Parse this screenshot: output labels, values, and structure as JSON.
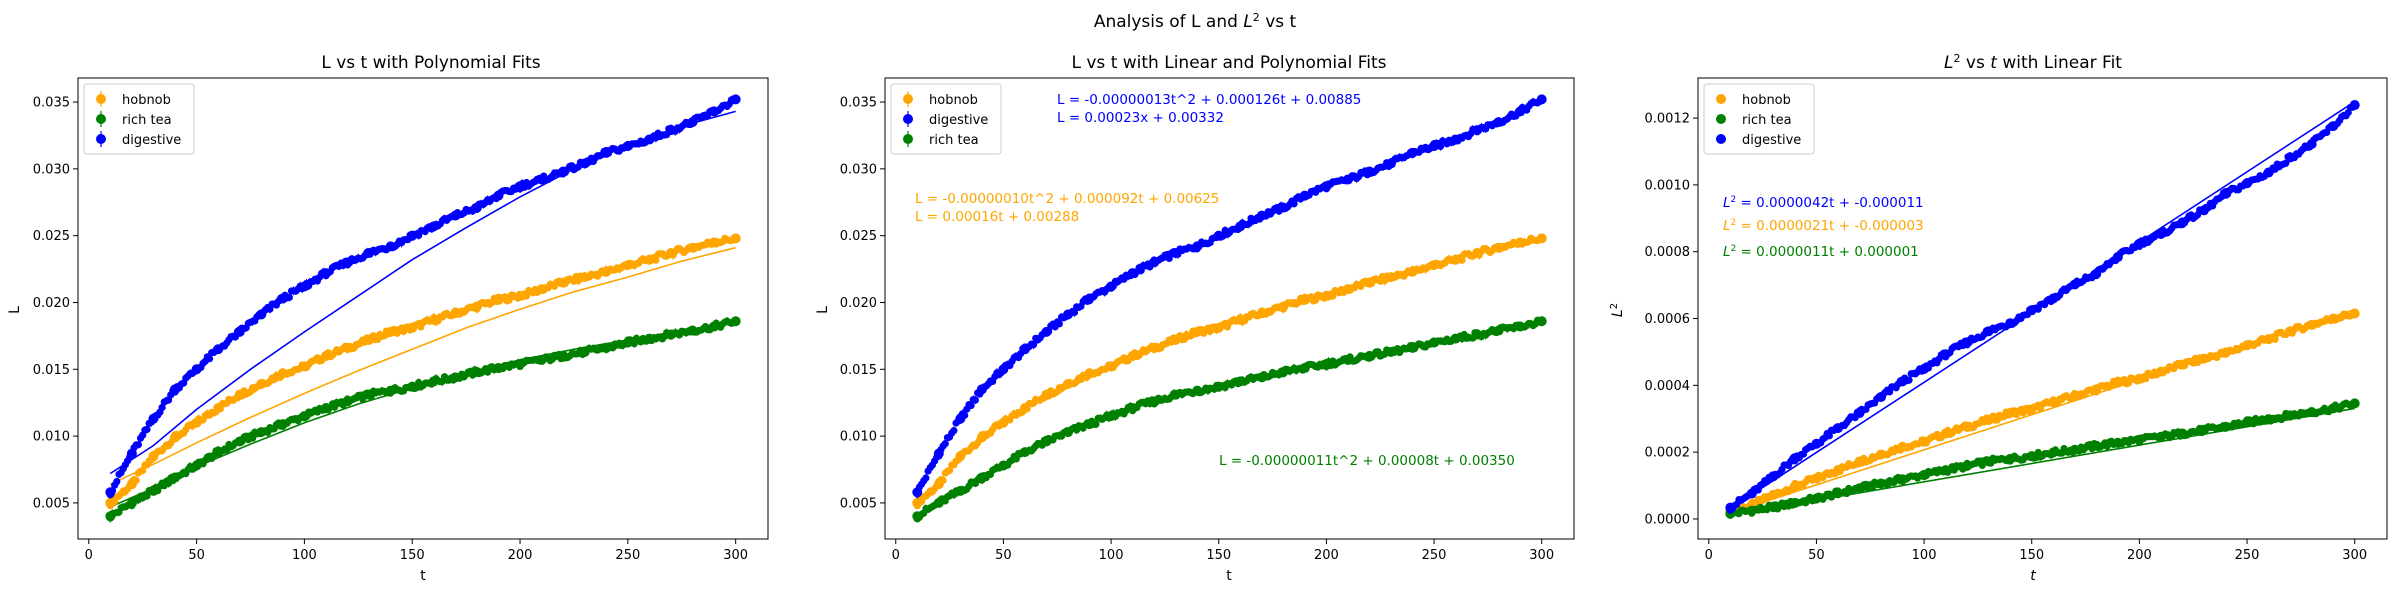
{
  "figure": {
    "title_prefix": "Analysis of L and ",
    "title_suffix": " vs t"
  },
  "colors": {
    "hobnob": "#ffa500",
    "rich_tea": "#008000",
    "digestive": "#0000ff",
    "axis": "#000000"
  },
  "chart_data": [
    {
      "type": "scatter",
      "title": "L vs t with Polynomial Fits",
      "xlabel": "t",
      "ylabel": "L",
      "xlim": [
        -5,
        315
      ],
      "ylim": [
        0.0023,
        0.0368
      ],
      "xticks": [
        0,
        50,
        100,
        150,
        200,
        250,
        300
      ],
      "xtick_labels": [
        "0",
        "50",
        "100",
        "150",
        "200",
        "250",
        "300"
      ],
      "yticks": [
        0.005,
        0.01,
        0.015,
        0.02,
        0.025,
        0.03,
        0.035
      ],
      "ytick_labels": [
        "0.005",
        "0.010",
        "0.015",
        "0.020",
        "0.025",
        "0.030",
        "0.035"
      ],
      "legend": [
        "hobnob",
        "rich tea",
        "digestive"
      ],
      "legend_position": "upper-left",
      "error_bars": true,
      "series": [
        {
          "name": "hobnob",
          "x": [
            10,
            20,
            30,
            40,
            50,
            60,
            70,
            80,
            90,
            100,
            110,
            120,
            130,
            140,
            150,
            160,
            170,
            180,
            190,
            200,
            210,
            220,
            230,
            240,
            250,
            260,
            270,
            280,
            290,
            300
          ],
          "y": [
            0.005,
            0.0064,
            0.0085,
            0.0099,
            0.011,
            0.0121,
            0.0131,
            0.0139,
            0.0147,
            0.0152,
            0.016,
            0.0166,
            0.0172,
            0.0178,
            0.0181,
            0.0187,
            0.0192,
            0.0197,
            0.0202,
            0.0205,
            0.021,
            0.0215,
            0.0219,
            0.0223,
            0.0228,
            0.0232,
            0.0237,
            0.0241,
            0.0245,
            0.0248
          ]
        },
        {
          "name": "rich tea",
          "x": [
            10,
            20,
            30,
            40,
            50,
            60,
            70,
            80,
            90,
            100,
            110,
            120,
            130,
            140,
            150,
            160,
            170,
            180,
            190,
            200,
            210,
            220,
            230,
            240,
            250,
            260,
            270,
            280,
            290,
            300
          ],
          "y": [
            0.004,
            0.005,
            0.0059,
            0.0069,
            0.0078,
            0.0088,
            0.0096,
            0.0103,
            0.0109,
            0.0115,
            0.0121,
            0.0126,
            0.0131,
            0.0134,
            0.0137,
            0.0141,
            0.0144,
            0.0148,
            0.0151,
            0.0154,
            0.0157,
            0.016,
            0.0163,
            0.0166,
            0.017,
            0.0173,
            0.0176,
            0.0179,
            0.0182,
            0.0186
          ]
        },
        {
          "name": "digestive",
          "x": [
            10,
            20,
            30,
            40,
            50,
            60,
            70,
            80,
            90,
            100,
            110,
            120,
            130,
            140,
            150,
            160,
            170,
            180,
            190,
            200,
            210,
            220,
            230,
            240,
            250,
            260,
            270,
            280,
            290,
            300
          ],
          "y": [
            0.0058,
            0.0087,
            0.0113,
            0.0135,
            0.015,
            0.0165,
            0.0178,
            0.0191,
            0.0203,
            0.0212,
            0.0222,
            0.023,
            0.0237,
            0.0242,
            0.025,
            0.0257,
            0.0265,
            0.0271,
            0.028,
            0.0287,
            0.0292,
            0.0298,
            0.0304,
            0.0312,
            0.0317,
            0.0322,
            0.0329,
            0.0335,
            0.0343,
            0.0352
          ]
        }
      ],
      "fits": [
        {
          "name": "hobnob",
          "x": [
            10,
            30,
            50,
            75,
            100,
            125,
            150,
            175,
            200,
            225,
            250,
            275,
            300
          ],
          "y": [
            0.0064,
            0.0079,
            0.0095,
            0.0114,
            0.0132,
            0.0149,
            0.0165,
            0.0181,
            0.0195,
            0.0208,
            0.0219,
            0.0231,
            0.0241
          ]
        },
        {
          "name": "rich tea",
          "x": [
            10,
            30,
            50,
            75,
            100,
            125,
            150,
            175,
            200,
            225,
            250,
            275,
            300
          ],
          "y": [
            0.0047,
            0.0061,
            0.0077,
            0.0094,
            0.011,
            0.0124,
            0.0136,
            0.0147,
            0.0157,
            0.0165,
            0.0172,
            0.0179,
            0.0185
          ]
        },
        {
          "name": "digestive",
          "x": [
            10,
            30,
            50,
            75,
            100,
            125,
            150,
            175,
            200,
            225,
            250,
            275,
            300
          ],
          "y": [
            0.0072,
            0.0093,
            0.012,
            0.015,
            0.0178,
            0.0205,
            0.0232,
            0.0256,
            0.0279,
            0.03,
            0.0318,
            0.0332,
            0.0343
          ]
        }
      ]
    },
    {
      "type": "scatter",
      "title": "L vs t with Linear and Polynomial Fits",
      "xlabel": "t",
      "ylabel": "L",
      "xlim": [
        -5,
        315
      ],
      "ylim": [
        0.0023,
        0.0368
      ],
      "xticks": [
        0,
        50,
        100,
        150,
        200,
        250,
        300
      ],
      "xtick_labels": [
        "0",
        "50",
        "100",
        "150",
        "200",
        "250",
        "300"
      ],
      "yticks": [
        0.005,
        0.01,
        0.015,
        0.02,
        0.025,
        0.03,
        0.035
      ],
      "ytick_labels": [
        "0.005",
        "0.010",
        "0.015",
        "0.020",
        "0.025",
        "0.030",
        "0.035"
      ],
      "legend": [
        "hobnob",
        "digestive",
        "rich tea"
      ],
      "legend_position": "upper-left",
      "error_bars": true,
      "annotations": [
        {
          "series": "digestive",
          "lines": [
            "L = -0.00000013t^2 + 0.000126t + 0.00885",
            "L = 0.00023x + 0.00332"
          ]
        },
        {
          "series": "hobnob",
          "lines": [
            "L = -0.00000010t^2 + 0.000092t + 0.00625",
            "L = 0.00016t + 0.00288"
          ]
        },
        {
          "series": "rich tea",
          "lines": [
            "L = -0.00000011t^2 + 0.00008t + 0.00350"
          ]
        }
      ],
      "series": [
        {
          "name": "hobnob",
          "x": [
            10,
            20,
            30,
            40,
            50,
            60,
            70,
            80,
            90,
            100,
            110,
            120,
            130,
            140,
            150,
            160,
            170,
            180,
            190,
            200,
            210,
            220,
            230,
            240,
            250,
            260,
            270,
            280,
            290,
            300
          ],
          "y": [
            0.005,
            0.0064,
            0.0085,
            0.0099,
            0.011,
            0.0121,
            0.0131,
            0.0139,
            0.0147,
            0.0152,
            0.016,
            0.0166,
            0.0172,
            0.0178,
            0.0181,
            0.0187,
            0.0192,
            0.0197,
            0.0202,
            0.0205,
            0.021,
            0.0215,
            0.0219,
            0.0223,
            0.0228,
            0.0232,
            0.0237,
            0.0241,
            0.0245,
            0.0248
          ]
        },
        {
          "name": "digestive",
          "x": [
            10,
            20,
            30,
            40,
            50,
            60,
            70,
            80,
            90,
            100,
            110,
            120,
            130,
            140,
            150,
            160,
            170,
            180,
            190,
            200,
            210,
            220,
            230,
            240,
            250,
            260,
            270,
            280,
            290,
            300
          ],
          "y": [
            0.0058,
            0.0087,
            0.0113,
            0.0135,
            0.015,
            0.0165,
            0.0178,
            0.0191,
            0.0203,
            0.0212,
            0.0222,
            0.023,
            0.0237,
            0.0242,
            0.025,
            0.0257,
            0.0265,
            0.0271,
            0.028,
            0.0287,
            0.0292,
            0.0298,
            0.0304,
            0.0312,
            0.0317,
            0.0322,
            0.0329,
            0.0335,
            0.0343,
            0.0352
          ]
        },
        {
          "name": "rich tea",
          "x": [
            10,
            20,
            30,
            40,
            50,
            60,
            70,
            80,
            90,
            100,
            110,
            120,
            130,
            140,
            150,
            160,
            170,
            180,
            190,
            200,
            210,
            220,
            230,
            240,
            250,
            260,
            270,
            280,
            290,
            300
          ],
          "y": [
            0.004,
            0.005,
            0.0059,
            0.0069,
            0.0078,
            0.0088,
            0.0096,
            0.0103,
            0.0109,
            0.0115,
            0.0121,
            0.0126,
            0.0131,
            0.0134,
            0.0137,
            0.0141,
            0.0144,
            0.0148,
            0.0151,
            0.0154,
            0.0157,
            0.016,
            0.0163,
            0.0166,
            0.017,
            0.0173,
            0.0176,
            0.0179,
            0.0182,
            0.0186
          ]
        }
      ]
    },
    {
      "type": "scatter",
      "title_prefix": "",
      "title_var": "L",
      "title_suffix": " vs ",
      "title_var2": "t",
      "title_end": " with Linear Fit",
      "xlabel": "t",
      "ylabel": "L",
      "xlim": [
        -5,
        315
      ],
      "ylim": [
        -6e-05,
        0.00132
      ],
      "xticks": [
        0,
        50,
        100,
        150,
        200,
        250,
        300
      ],
      "xtick_labels": [
        "0",
        "50",
        "100",
        "150",
        "200",
        "250",
        "300"
      ],
      "yticks": [
        0.0,
        0.0002,
        0.0004,
        0.0006,
        0.0008,
        0.001,
        0.0012
      ],
      "ytick_labels": [
        "0.0000",
        "0.0002",
        "0.0004",
        "0.0006",
        "0.0008",
        "0.0010",
        "0.0012"
      ],
      "legend": [
        "hobnob",
        "rich tea",
        "digestive"
      ],
      "legend_position": "upper-left",
      "annotations": [
        {
          "series": "digestive",
          "text": " = 0.0000042t + -0.000011"
        },
        {
          "series": "hobnob",
          "text": " = 0.0000021t + -0.000003"
        },
        {
          "series": "rich tea",
          "text": " = 0.0000011t + 0.000001"
        }
      ],
      "series": [
        {
          "name": "hobnob",
          "x": [
            10,
            20,
            30,
            40,
            50,
            60,
            70,
            80,
            90,
            100,
            110,
            120,
            130,
            140,
            150,
            160,
            170,
            180,
            190,
            200,
            210,
            220,
            230,
            240,
            250,
            260,
            270,
            280,
            290,
            300
          ],
          "y": [
            2.5e-05,
            4.1e-05,
            7.2e-05,
            9.8e-05,
            0.000121,
            0.000146,
            0.000172,
            0.000193,
            0.000216,
            0.000231,
            0.000256,
            0.000276,
            0.000296,
            0.000317,
            0.000328,
            0.00035,
            0.000369,
            0.000388,
            0.000408,
            0.00042,
            0.000441,
            0.000462,
            0.00048,
            0.000497,
            0.00052,
            0.000538,
            0.000562,
            0.000581,
            0.0006,
            0.000615
          ]
        },
        {
          "name": "rich tea",
          "x": [
            10,
            20,
            30,
            40,
            50,
            60,
            70,
            80,
            90,
            100,
            110,
            120,
            130,
            140,
            150,
            160,
            170,
            180,
            190,
            200,
            210,
            220,
            230,
            240,
            250,
            260,
            270,
            280,
            290,
            300
          ],
          "y": [
            1.6e-05,
            2.5e-05,
            3.5e-05,
            4.8e-05,
            6.1e-05,
            7.7e-05,
            9.2e-05,
            0.000106,
            0.000119,
            0.000132,
            0.000146,
            0.000159,
            0.000172,
            0.00018,
            0.000188,
            0.000199,
            0.000207,
            0.000219,
            0.000228,
            0.000237,
            0.000246,
            0.000256,
            0.000266,
            0.000276,
            0.000289,
            0.000299,
            0.00031,
            0.00032,
            0.000331,
            0.000346
          ]
        },
        {
          "name": "digestive",
          "x": [
            10,
            20,
            30,
            40,
            50,
            60,
            70,
            80,
            90,
            100,
            110,
            120,
            130,
            140,
            150,
            160,
            170,
            180,
            190,
            200,
            210,
            220,
            230,
            240,
            250,
            260,
            270,
            280,
            290,
            300
          ],
          "y": [
            3.4e-05,
            7.6e-05,
            0.000128,
            0.000182,
            0.000225,
            0.000272,
            0.000317,
            0.000365,
            0.000412,
            0.000449,
            0.000493,
            0.000529,
            0.000562,
            0.000586,
            0.000625,
            0.00066,
            0.000702,
            0.000734,
            0.000784,
            0.000824,
            0.000853,
            0.000888,
            0.000924,
            0.000973,
            0.001005,
            0.001037,
            0.001082,
            0.001122,
            0.001176,
            0.001239
          ]
        }
      ],
      "fits": [
        {
          "name": "hobnob",
          "x": [
            10,
            300
          ],
          "y": [
            1.8e-05,
            0.000627
          ]
        },
        {
          "name": "rich tea",
          "x": [
            10,
            300
          ],
          "y": [
            1.2e-05,
            0.000331
          ]
        },
        {
          "name": "digestive",
          "x": [
            10,
            300
          ],
          "y": [
            3.1e-05,
            0.001249
          ]
        }
      ]
    }
  ]
}
